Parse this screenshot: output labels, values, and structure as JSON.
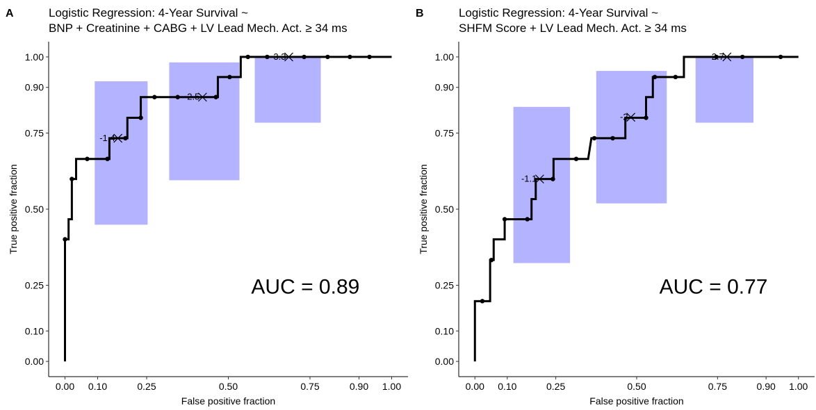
{
  "chart_data": [
    {
      "type": "line",
      "panel_label": "A",
      "title": "Logistic Regression: 4-Year Survival ~",
      "subtitle": "BNP + Creatinine + CABG + LV Lead Mech. Act. ≥ 34 ms",
      "x_label": "False positive fraction",
      "y_label": "True positive fraction",
      "annotation": "AUC = 0.89",
      "xlim": [
        -0.05,
        1.05
      ],
      "ylim": [
        -0.05,
        1.05
      ],
      "xticks": [
        {
          "value": 0,
          "label": "0.00"
        },
        {
          "value": 0.1,
          "label": "0.10"
        },
        {
          "value": 0.25,
          "label": "0.25"
        },
        {
          "value": 0.5,
          "label": "0.50"
        },
        {
          "value": 0.75,
          "label": "0.75"
        },
        {
          "value": 0.9,
          "label": "0.90"
        },
        {
          "value": 1,
          "label": "1.00"
        }
      ],
      "yticks": [
        {
          "value": 0,
          "label": "0.00"
        },
        {
          "value": 0.1,
          "label": "0.10"
        },
        {
          "value": 0.25,
          "label": "0.25"
        },
        {
          "value": 0.5,
          "label": "0.50"
        },
        {
          "value": 0.75,
          "label": "0.75"
        },
        {
          "value": 0.9,
          "label": "0.90"
        },
        {
          "value": 1,
          "label": "1.00"
        }
      ],
      "color": "#000000",
      "box_color": "#b3b3ff",
      "curve": {
        "x": [
          0,
          0,
          0.011,
          0.011,
          0.021,
          0.021,
          0.034,
          0.034,
          0.136,
          0.136,
          0.191,
          0.191,
          0.232,
          0.232,
          0.468,
          0.468,
          0.538,
          0.538,
          1
        ],
        "y": [
          0,
          0.401,
          0.401,
          0.467,
          0.467,
          0.599,
          0.599,
          0.665,
          0.665,
          0.733,
          0.733,
          0.8,
          0.8,
          0.868,
          0.868,
          0.934,
          0.934,
          1,
          1
        ]
      },
      "points": {
        "x": [
          0,
          0.021,
          0.068,
          0.13,
          0.185,
          0.232,
          0.274,
          0.345,
          0.462,
          0.504,
          0.56,
          0.619,
          0.732,
          0.804,
          0.872,
          0.932
        ],
        "y": [
          0.401,
          0.599,
          0.665,
          0.665,
          0.733,
          0.8,
          0.868,
          0.868,
          0.868,
          0.934,
          1,
          1,
          1,
          1,
          1,
          1
        ]
      },
      "boxes": [
        {
          "xmin": 0.091,
          "xmax": 0.253,
          "ymin": 0.449,
          "ymax": 0.92
        },
        {
          "xmin": 0.319,
          "xmax": 0.534,
          "ymin": 0.595,
          "ymax": 0.982
        },
        {
          "xmin": 0.581,
          "xmax": 0.783,
          "ymin": 0.784,
          "ymax": 1
        }
      ],
      "thresholds": {
        "x": [
          0.162,
          0.421,
          0.685
        ],
        "y": [
          0.733,
          0.868,
          1
        ],
        "labels": [
          "-1.4",
          "-2.5",
          "-3.3"
        ]
      }
    },
    {
      "type": "line",
      "panel_label": "B",
      "title": "Logistic Regression: 4-Year Survival ~",
      "subtitle": "SHFM Score + LV Lead Mech. Act. ≥ 34 ms",
      "x_label": "False positive fraction",
      "y_label": "True positive fraction",
      "annotation": "AUC = 0.77",
      "xlim": [
        -0.05,
        1.05
      ],
      "ylim": [
        -0.05,
        1.05
      ],
      "xticks": [
        {
          "value": 0,
          "label": "0.00"
        },
        {
          "value": 0.1,
          "label": "0.10"
        },
        {
          "value": 0.25,
          "label": "0.25"
        },
        {
          "value": 0.5,
          "label": "0.50"
        },
        {
          "value": 0.75,
          "label": "0.75"
        },
        {
          "value": 0.9,
          "label": "0.90"
        },
        {
          "value": 1,
          "label": "1.00"
        }
      ],
      "yticks": [
        {
          "value": 0,
          "label": "0.00"
        },
        {
          "value": 0.1,
          "label": "0.10"
        },
        {
          "value": 0.25,
          "label": "0.25"
        },
        {
          "value": 0.5,
          "label": "0.50"
        },
        {
          "value": 0.75,
          "label": "0.75"
        },
        {
          "value": 0.9,
          "label": "0.90"
        },
        {
          "value": 1,
          "label": "1.00"
        }
      ],
      "color": "#000000",
      "box_color": "#b3b3ff",
      "curve": {
        "x": [
          0,
          0,
          0.047,
          0.047,
          0.058,
          0.058,
          0.092,
          0.092,
          0.175,
          0.175,
          0.188,
          0.188,
          0.243,
          0.243,
          0.35,
          0.36,
          0.465,
          0.465,
          0.529,
          0.529,
          0.55,
          0.55,
          0.646,
          0.646,
          1
        ],
        "y": [
          0,
          0.198,
          0.198,
          0.333,
          0.333,
          0.401,
          0.401,
          0.467,
          0.467,
          0.533,
          0.533,
          0.599,
          0.599,
          0.665,
          0.665,
          0.733,
          0.733,
          0.8,
          0.8,
          0.868,
          0.868,
          0.934,
          0.934,
          1,
          1
        ]
      },
      "points": {
        "x": [
          0.023,
          0.051,
          0.092,
          0.162,
          0.241,
          0.313,
          0.369,
          0.426,
          0.529,
          0.556,
          0.62,
          0.746,
          0.827,
          0.945
        ],
        "y": [
          0.198,
          0.333,
          0.467,
          0.467,
          0.599,
          0.665,
          0.733,
          0.733,
          0.8,
          0.934,
          0.934,
          1,
          1,
          1
        ]
      },
      "boxes": [
        {
          "xmin": 0.119,
          "xmax": 0.294,
          "ymin": 0.323,
          "ymax": 0.836
        },
        {
          "xmin": 0.375,
          "xmax": 0.593,
          "ymin": 0.519,
          "ymax": 0.954
        },
        {
          "xmin": 0.682,
          "xmax": 0.861,
          "ymin": 0.784,
          "ymax": 1
        }
      ],
      "thresholds": {
        "x": [
          0.2,
          0.482,
          0.779
        ],
        "y": [
          0.599,
          0.802,
          1
        ],
        "labels": [
          "-1.1",
          "-2",
          "-2.7"
        ]
      }
    }
  ]
}
